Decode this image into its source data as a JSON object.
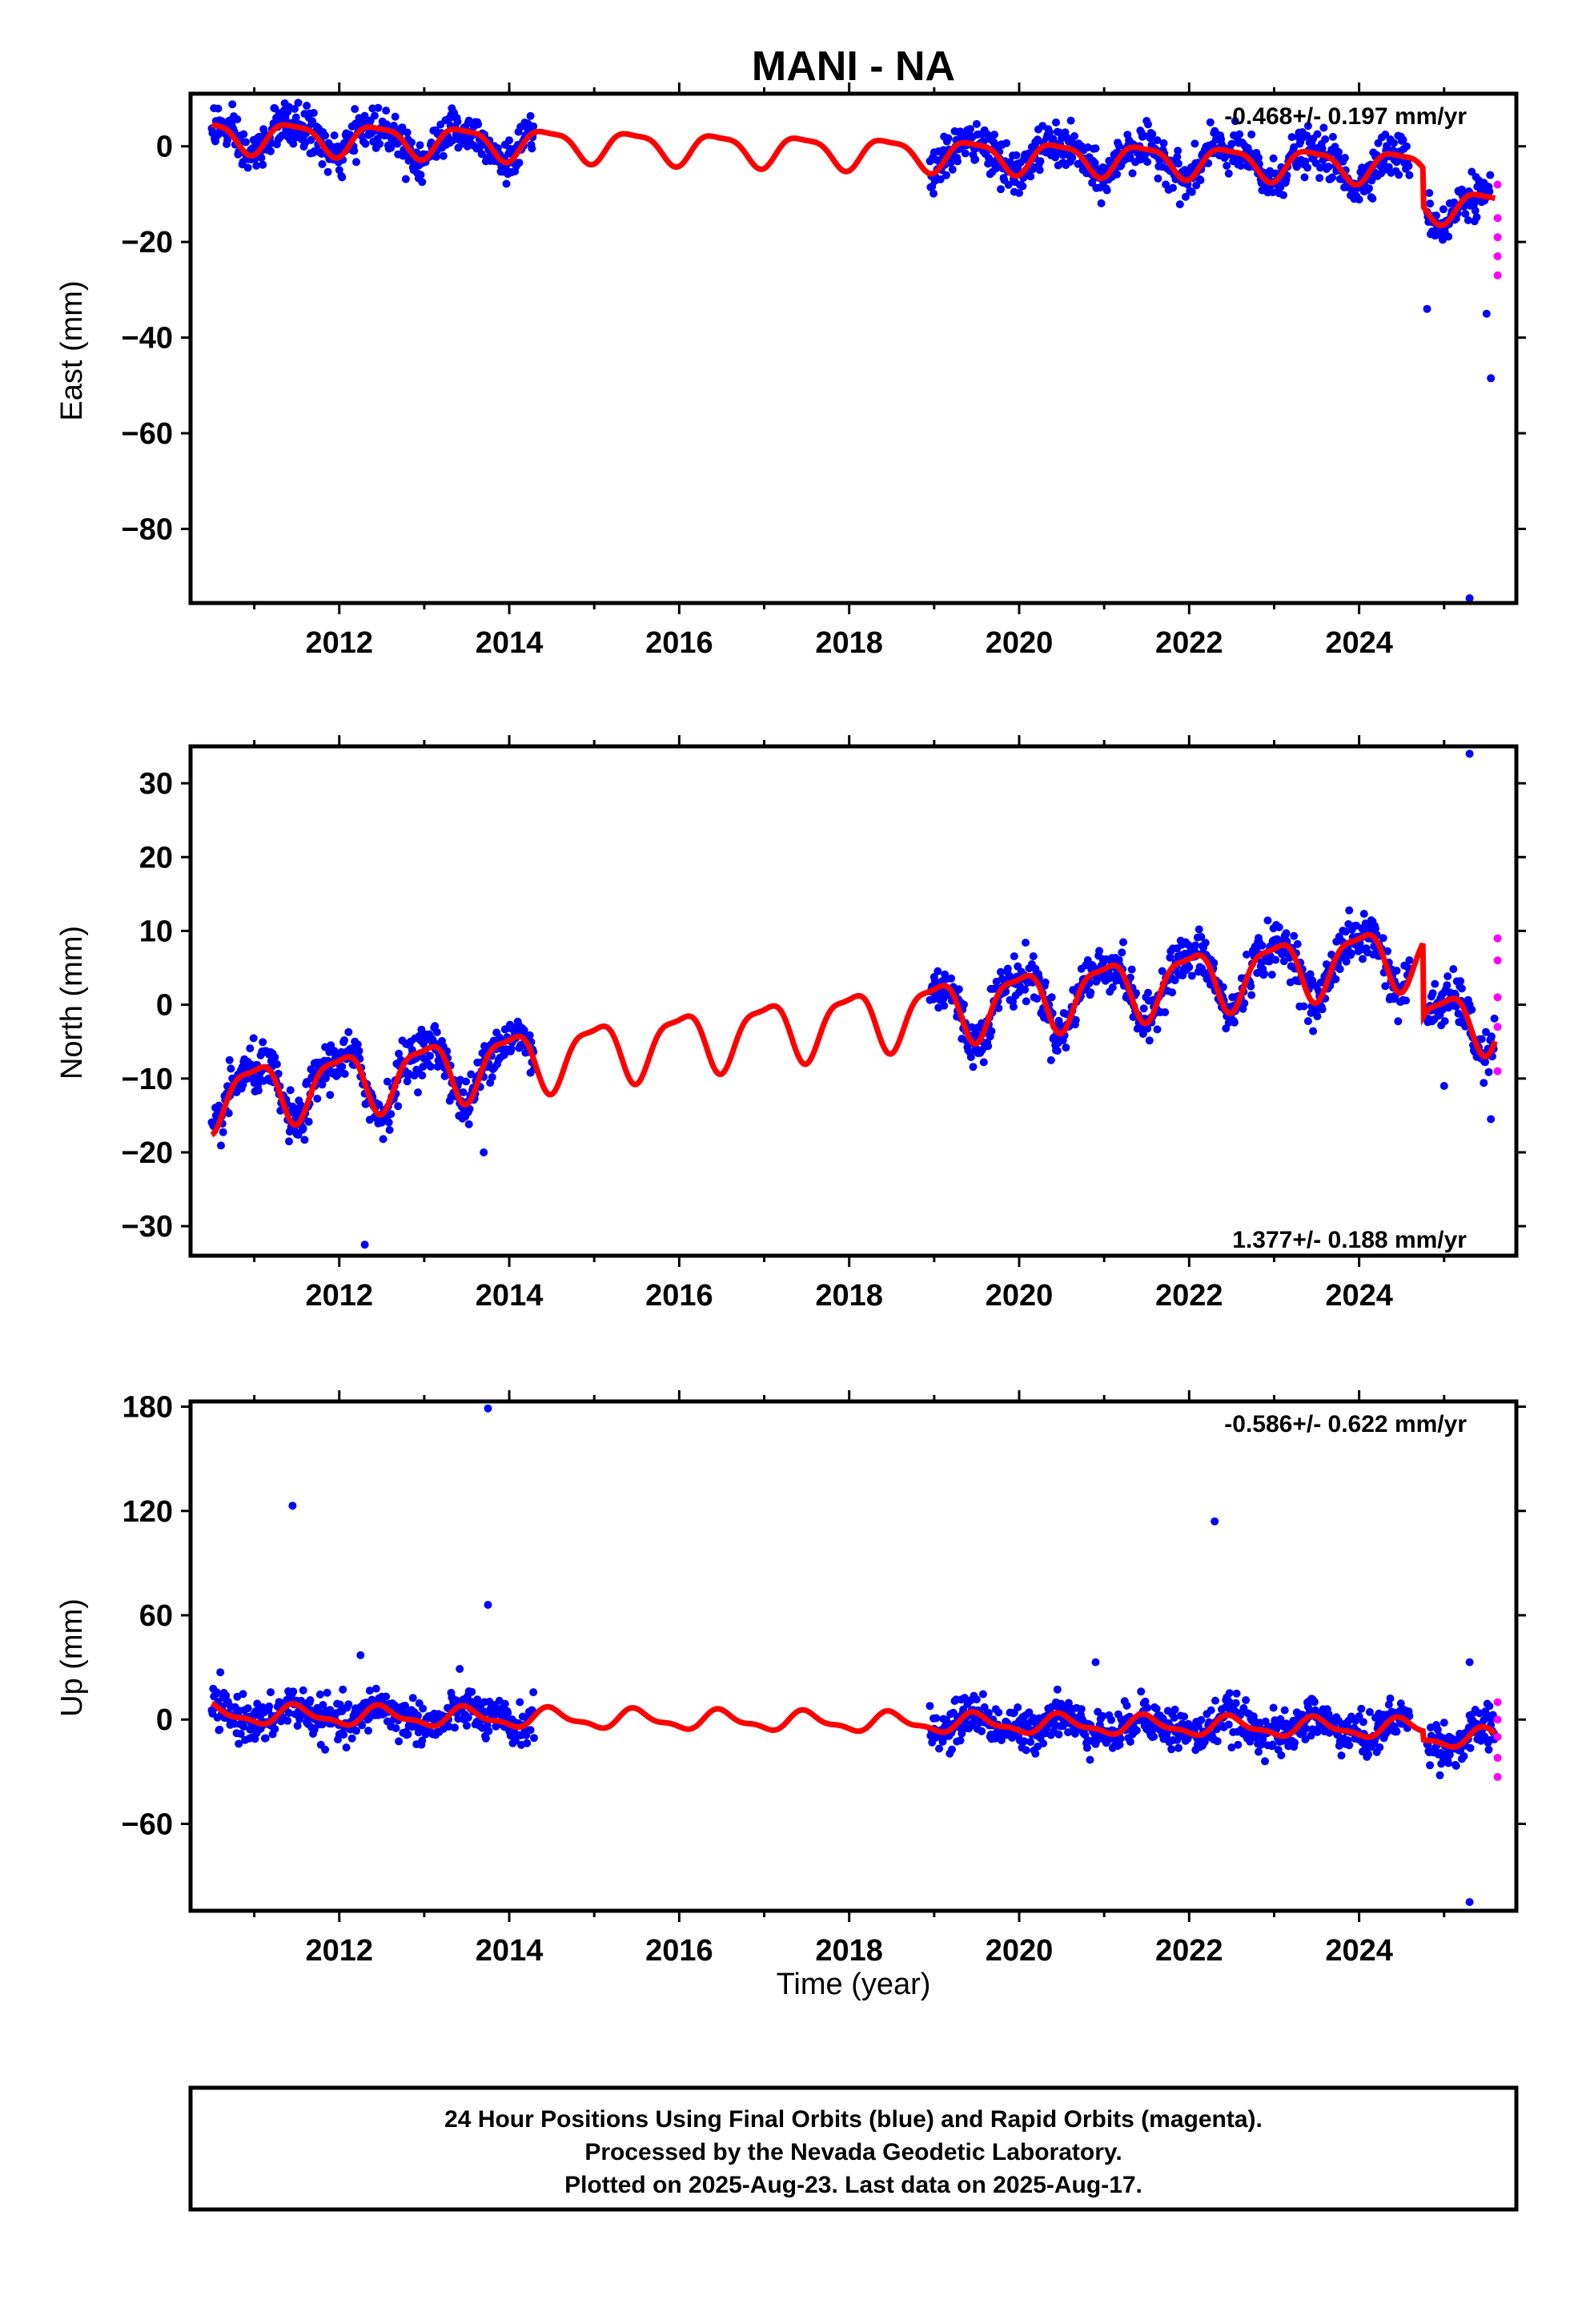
{
  "colors": {
    "final_orbits": "#0000ff",
    "rapid_orbits": "#ff00ff",
    "model_fit": "#ff0000",
    "frame": "#000000"
  },
  "chart_data": {
    "type": "scatter",
    "title": "MANI - NA",
    "xlabel": "Time (year)",
    "xlim": [
      2010.25,
      2025.85
    ],
    "xticks": [
      2012,
      2014,
      2016,
      2018,
      2020,
      2022,
      2024
    ],
    "panels": [
      {
        "id": "east",
        "ylabel": "East (mm)",
        "ylim": [
          -95.5,
          11
        ],
        "yticks": [
          0,
          -20,
          -40,
          -60,
          -80
        ],
        "rate_label": "-0.468+/- 0.197 mm/yr",
        "rate_position": "top-right",
        "data_ranges": [
          [
            2010.5,
            2014.3
          ],
          [
            2018.95,
            2024.6
          ],
          [
            2024.8,
            2025.55
          ]
        ],
        "model": {
          "offset": 2.3,
          "slope": -0.468,
          "t0": 2010.5,
          "amp1": 3.2,
          "phase1": 0.2,
          "amp2": 0.9,
          "phase2": 0.6,
          "steps": [
            {
              "t": 2024.75,
              "dy": -8
            }
          ]
        },
        "noise": 2.2,
        "outliers": [
          [
            2025.3,
            -94.5
          ],
          [
            2025.55,
            -48.5
          ],
          [
            2024.8,
            -34
          ],
          [
            2025.5,
            -35
          ],
          [
            2022.25,
            5
          ]
        ],
        "rapid": [
          [
            2025.63,
            -8
          ],
          [
            2025.63,
            -15
          ],
          [
            2025.63,
            -19
          ],
          [
            2025.63,
            -23
          ],
          [
            2025.63,
            -27
          ]
        ]
      },
      {
        "id": "north",
        "ylabel": "North (mm)",
        "ylim": [
          -34,
          35
        ],
        "yticks": [
          30,
          20,
          10,
          0,
          -10,
          -20,
          -30
        ],
        "rate_label": "1.377+/- 0.188 mm/yr",
        "rate_position": "bottom-right",
        "data_ranges": [
          [
            2010.5,
            2014.3
          ],
          [
            2018.95,
            2024.6
          ],
          [
            2024.8,
            2025.6
          ]
        ],
        "model": {
          "offset": -12.5,
          "slope": 1.377,
          "t0": 2010.5,
          "amp1": 4.0,
          "phase1": 0.75,
          "amp2": 1.2,
          "phase2": 0.6,
          "steps": [
            {
              "t": 2024.75,
              "dy": -10
            }
          ]
        },
        "noise": 1.6,
        "outliers": [
          [
            2012.3,
            -32.5
          ],
          [
            2013.7,
            -20
          ],
          [
            2025.3,
            34
          ],
          [
            2025.55,
            -15.5
          ],
          [
            2025.0,
            -11
          ]
        ],
        "rapid": [
          [
            2025.63,
            9
          ],
          [
            2025.63,
            6
          ],
          [
            2025.63,
            1
          ],
          [
            2025.63,
            -3
          ],
          [
            2025.63,
            -9
          ]
        ]
      },
      {
        "id": "up",
        "ylabel": "Up (mm)",
        "ylim": [
          -110,
          183
        ],
        "yticks": [
          180,
          120,
          60,
          0,
          -60
        ],
        "rate_label": "-0.586+/- 0.622 mm/yr",
        "rate_position": "top-right",
        "data_ranges": [
          [
            2010.5,
            2014.3
          ],
          [
            2018.95,
            2024.6
          ],
          [
            2024.8,
            2025.6
          ]
        ],
        "model": {
          "offset": 3,
          "slope": -0.586,
          "t0": 2010.5,
          "amp1": 5,
          "phase1": 0.25,
          "amp2": 2,
          "phase2": 0.3,
          "steps": [
            {
              "t": 2024.75,
              "dy": -5
            }
          ]
        },
        "noise": 6,
        "outliers": [
          [
            2011.45,
            123
          ],
          [
            2013.75,
            179
          ],
          [
            2013.75,
            66
          ],
          [
            2022.3,
            114
          ],
          [
            2025.3,
            -105
          ],
          [
            2020.9,
            33
          ],
          [
            2025.3,
            33
          ],
          [
            2012.25,
            37
          ]
        ],
        "rapid": [
          [
            2025.63,
            10
          ],
          [
            2025.63,
            0
          ],
          [
            2025.63,
            -10
          ],
          [
            2025.63,
            -22
          ],
          [
            2025.63,
            -33
          ]
        ]
      }
    ],
    "series": [
      {
        "name": "Final Orbits",
        "color": "#0000ff"
      },
      {
        "name": "Rapid Orbits",
        "color": "#ff00ff"
      },
      {
        "color": "#ff0000"
      }
    ],
    "grid": false
  },
  "footer": {
    "line1": "24 Hour Positions Using Final Orbits (blue) and Rapid Orbits (magenta).",
    "line2": "Processed by the Nevada Geodetic Laboratory.",
    "line3": "Plotted on 2025-Aug-23. Last data on 2025-Aug-17."
  }
}
